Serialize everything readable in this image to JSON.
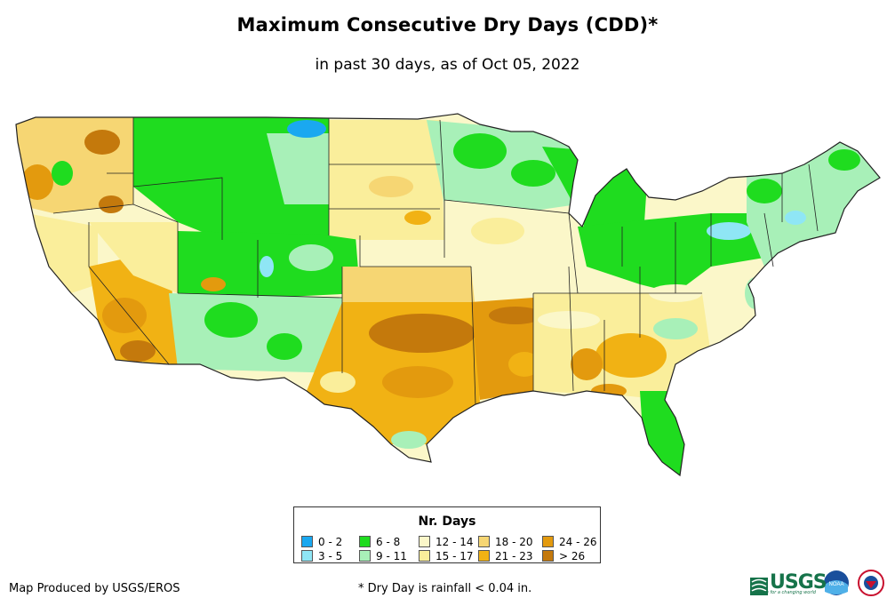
{
  "header": {
    "title": "Maximum Consecutive Dry Days (CDD)*",
    "subtitle": "in past 30 days, as of Oct 05, 2022"
  },
  "legend": {
    "title": "Nr. Days",
    "items": [
      {
        "label": "0 - 2",
        "color": "#1aa8f0"
      },
      {
        "label": "3 - 5",
        "color": "#8fe6f5"
      },
      {
        "label": "6 - 8",
        "color": "#1fdc1f"
      },
      {
        "label": "9 - 11",
        "color": "#a8f0b8"
      },
      {
        "label": "12 - 14",
        "color": "#fbf7c9"
      },
      {
        "label": "15 - 17",
        "color": "#faee9b"
      },
      {
        "label": "18 - 20",
        "color": "#f6d673"
      },
      {
        "label": "21 - 23",
        "color": "#f1b214"
      },
      {
        "label": "24 - 26",
        "color": "#e39a0e"
      },
      {
        "label": "> 26",
        "color": "#c4790c"
      }
    ]
  },
  "footer": {
    "credit": "Map Produced by USGS/EROS",
    "footnote": "* Dry Day is rainfall < 0.04 in.",
    "logo_usgs": "USGS",
    "logo_usgs_tagline": "science for a changing world",
    "logo_noaa": "NOAA"
  }
}
